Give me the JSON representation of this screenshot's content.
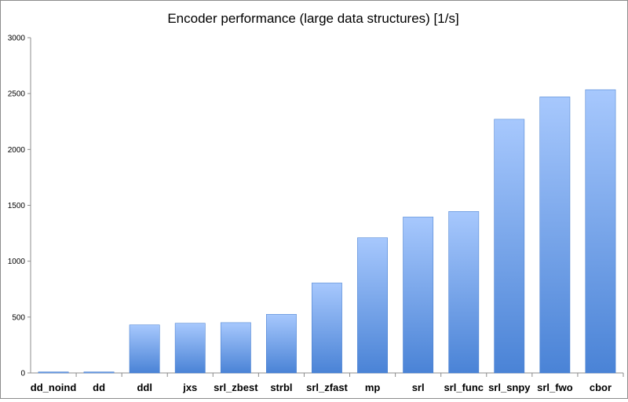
{
  "chart_data": {
    "type": "bar",
    "title": "Encoder performance (large data structures) [1/s]",
    "xlabel": "",
    "ylabel": "",
    "ylim": [
      0,
      3000
    ],
    "yticks": [
      0,
      500,
      1000,
      1500,
      2000,
      2500,
      3000
    ],
    "grid": false,
    "legend": "none",
    "categories": [
      "dd_noind",
      "dd",
      "ddl",
      "jxs",
      "srl_zbest",
      "strbl",
      "srl_zfast",
      "mp",
      "srl",
      "srl_func",
      "srl_snpy",
      "srl_fwo",
      "cbor"
    ],
    "values": [
      10,
      10,
      430,
      445,
      450,
      525,
      805,
      1210,
      1395,
      1445,
      2270,
      2470,
      2535
    ],
    "colors": {
      "bar_top": "#a7c8fd",
      "bar_bottom": "#4a83d6",
      "axis": "#8c8c8c"
    }
  }
}
